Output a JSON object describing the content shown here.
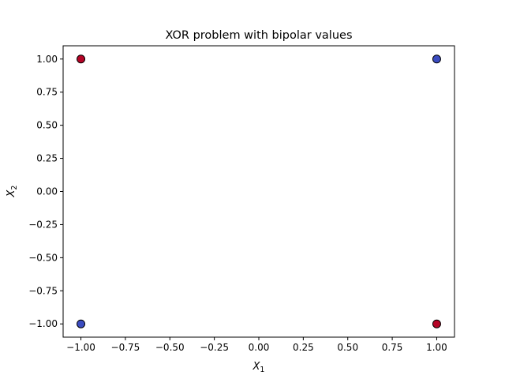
{
  "chart_data": {
    "type": "scatter",
    "title": "XOR problem with bipolar values",
    "xlabel": {
      "base": "X",
      "sub": "1"
    },
    "ylabel": {
      "base": "X",
      "sub": "2"
    },
    "xlim": [
      -1.1,
      1.1
    ],
    "ylim": [
      -1.1,
      1.1
    ],
    "grid": false,
    "xticks": [
      -1.0,
      -0.75,
      -0.5,
      -0.25,
      0.0,
      0.25,
      0.5,
      0.75,
      1.0
    ],
    "yticks": [
      -1.0,
      -0.75,
      -0.5,
      -0.25,
      0.0,
      0.25,
      0.5,
      0.75,
      1.0
    ],
    "xtick_labels": [
      "−1.00",
      "−0.75",
      "−0.50",
      "−0.25",
      "0.00",
      "0.25",
      "0.50",
      "0.75",
      "1.00"
    ],
    "ytick_labels": [
      "−1.00",
      "−0.75",
      "−0.50",
      "−0.25",
      "0.00",
      "0.25",
      "0.50",
      "0.75",
      "1.00"
    ],
    "points": [
      {
        "x": -1,
        "y": 1,
        "color": "#b40426"
      },
      {
        "x": 1,
        "y": 1,
        "color": "#3b4cc0"
      },
      {
        "x": -1,
        "y": -1,
        "color": "#3b4cc0"
      },
      {
        "x": 1,
        "y": -1,
        "color": "#b40426"
      }
    ],
    "marker_edge_color": "#000000"
  }
}
